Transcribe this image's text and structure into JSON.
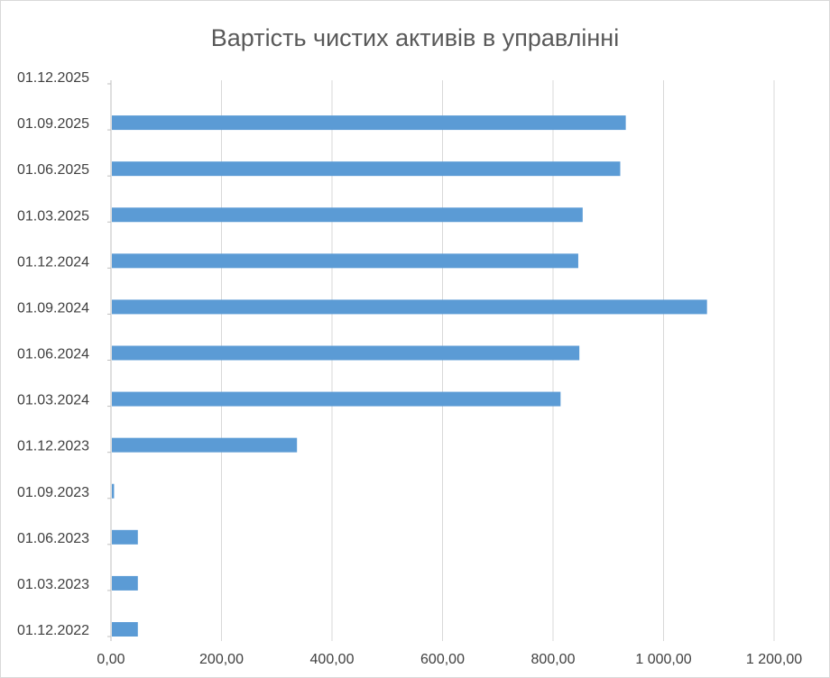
{
  "chart_data": {
    "type": "bar",
    "orientation": "horizontal",
    "title": "Вартість чистих активів в управлінні",
    "categories": [
      "01.12.2022",
      "01.03.2023",
      "01.06.2023",
      "01.09.2023",
      "01.12.2023",
      "01.03.2024",
      "01.06.2024",
      "01.09.2024",
      "01.12.2024",
      "01.03.2025",
      "01.06.2025",
      "01.09.2025",
      "01.12.2025"
    ],
    "values": [
      47,
      47,
      47,
      4,
      335,
      812,
      846,
      1077,
      844,
      852,
      920,
      930,
      0
    ],
    "x_ticks": [
      "0,00",
      "200,00",
      "400,00",
      "600,00",
      "800,00",
      "1 000,00",
      "1 200,00"
    ],
    "xlim": [
      0,
      1200
    ],
    "grid": true,
    "legend": "none",
    "bar_color": "#5b9bd5",
    "grid_color": "#d9d9d9"
  }
}
